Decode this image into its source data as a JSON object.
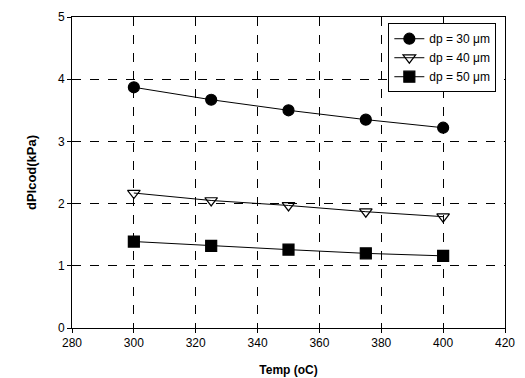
{
  "chart_data": {
    "type": "line",
    "x_label": "Temp (oC)",
    "y_label": "dPlcod(kPa)",
    "x": [
      300,
      325,
      350,
      375,
      400
    ],
    "series": [
      {
        "name": "dp = 30 μm",
        "color": "#000000",
        "marker": "circle",
        "line_style": "solid",
        "values": [
          3.87,
          3.67,
          3.5,
          3.35,
          3.22
        ]
      },
      {
        "name": "dp = 40 μm",
        "color": "#000000",
        "marker": "triangle-down-open",
        "line_style": "solid",
        "values": [
          2.17,
          2.05,
          1.97,
          1.87,
          1.79
        ]
      },
      {
        "name": "dp = 50 μm",
        "color": "#000000",
        "marker": "square",
        "line_style": "solid",
        "values": [
          1.39,
          1.32,
          1.26,
          1.2,
          1.16
        ]
      }
    ],
    "xlim": [
      280,
      420
    ],
    "xticks": [
      280,
      300,
      320,
      340,
      360,
      380,
      400,
      420
    ],
    "ylim": [
      0,
      5
    ],
    "yticks": [
      0,
      1,
      2,
      3,
      4,
      5
    ],
    "grid": true,
    "legend": "top-right"
  }
}
